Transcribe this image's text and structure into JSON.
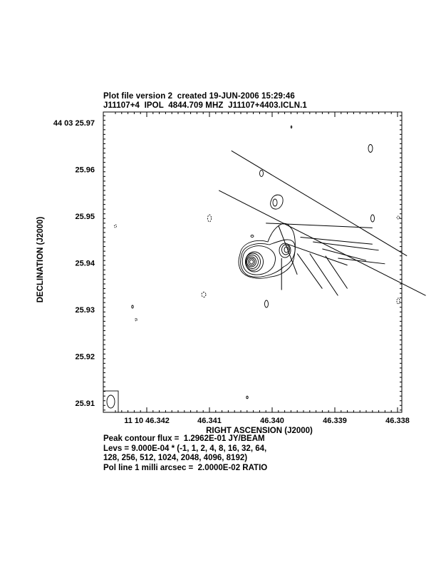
{
  "header": {
    "line1": "Plot file version 2  created 19-JUN-2006 15:29:46",
    "line2": "J11107+4  IPOL  4844.709 MHZ  J11107+4403.ICLN.1"
  },
  "footer": {
    "peak": "Peak contour flux =  1.2962E-01 JY/BEAM",
    "levs1": "Levs = 9.000E-04 * (-1, 1, 2, 4, 8, 16, 32, 64,",
    "levs2": "128, 256, 512, 1024, 2048, 4096, 8192)",
    "pol": "Pol line 1 milli arcsec =  2.0000E-02 RATIO"
  },
  "chart_data": {
    "type": "contour",
    "xlabel": "RIGHT ASCENSION (J2000)",
    "ylabel": "DECLINATION (J2000)",
    "x_ticks": [
      {
        "value": 46.342,
        "label": "11 10 46.342"
      },
      {
        "value": 46.341,
        "label": "46.341"
      },
      {
        "value": 46.34,
        "label": "46.340"
      },
      {
        "value": 46.339,
        "label": "46.339"
      },
      {
        "value": 46.338,
        "label": "46.338"
      }
    ],
    "y_ticks": [
      {
        "value": 25.97,
        "label": "44 03 25.97"
      },
      {
        "value": 25.96,
        "label": "25.96"
      },
      {
        "value": 25.95,
        "label": "25.95"
      },
      {
        "value": 25.94,
        "label": "25.94"
      },
      {
        "value": 25.93,
        "label": "25.93"
      },
      {
        "value": 25.92,
        "label": "25.92"
      },
      {
        "value": 25.91,
        "label": "25.91"
      }
    ],
    "x_range_reversed": true,
    "base_level": 0.0009,
    "level_multipliers": [
      -1,
      1,
      2,
      4,
      8,
      16,
      32,
      64,
      128,
      256,
      512,
      1024,
      2048,
      4096,
      8192
    ],
    "peak_flux": 0.12962,
    "peak_position": {
      "ra": 46.34,
      "dec": 25.94
    },
    "secondary_component": {
      "ra": 46.3392,
      "dec": 25.9425
    },
    "pol_vectors": [
      {
        "ra": 46.3401,
        "dec": 25.9485,
        "ra2": 46.3384,
        "dec2": 25.9475
      },
      {
        "ra": 46.33955,
        "dec": 25.9455,
        "ra2": 46.3384,
        "dec2": 25.944
      },
      {
        "ra": 46.33935,
        "dec": 25.9445,
        "ra2": 46.3383,
        "dec2": 25.9427
      },
      {
        "ra": 46.3392,
        "dec": 25.943,
        "ra2": 46.3385,
        "dec2": 25.9405
      },
      {
        "ra": 46.33975,
        "dec": 25.944,
        "ra2": 46.3388,
        "dec2": 25.9395
      },
      {
        "ra": 46.33895,
        "dec": 25.941,
        "ra2": 46.3382,
        "dec2": 25.9398
      },
      {
        "ra": 46.3396,
        "dec": 25.942,
        "ra2": 46.3392,
        "dec2": 25.9345
      },
      {
        "ra": 46.33985,
        "dec": 25.941,
        "ra2": 46.33985,
        "dec2": 25.9342
      },
      {
        "ra": 46.3394,
        "dec": 25.942,
        "ra2": 46.33895,
        "dec2": 25.933
      },
      {
        "ra": 46.33915,
        "dec": 25.9415,
        "ra2": 46.3388,
        "dec2": 25.9345
      },
      {
        "ra": 46.34065,
        "dec": 25.964,
        "ra2": 46.33785,
        "dec2": 25.9415
      },
      {
        "ra": 46.34085,
        "dec": 25.9555,
        "ra2": 46.33755,
        "dec2": 25.933
      },
      {
        "ra": 46.3399,
        "dec": 25.948,
        "ra2": 46.3396,
        "dec2": 25.9375
      }
    ],
    "colors": {
      "line": "#000000",
      "background": "#ffffff"
    }
  }
}
